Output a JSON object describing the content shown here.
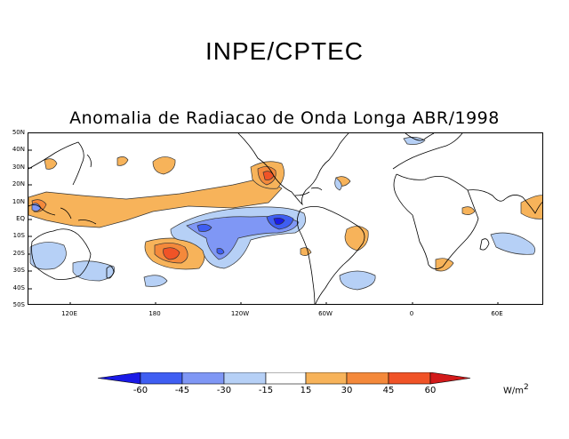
{
  "header": {
    "agency": "INPE/CPTEC",
    "title": "Anomalia de Radiacao de Onda Longa ABR/1998"
  },
  "map": {
    "lat_labels": [
      "50N",
      "40N",
      "30N",
      "20N",
      "10N",
      "EQ",
      "10S",
      "20S",
      "30S",
      "40S",
      "50S"
    ],
    "lon_labels": [
      "120E",
      "180",
      "120W",
      "60W",
      "0",
      "60E"
    ]
  },
  "legend": {
    "ticks": [
      "-60",
      "-45",
      "-30",
      "-15",
      "15",
      "30",
      "45",
      "60"
    ],
    "colors": [
      "#1a1ae6",
      "#3f5ef2",
      "#7f97f5",
      "#b6d0f6",
      "#ffffff",
      "#f7b35a",
      "#f4893b",
      "#f05327",
      "#d21a1a"
    ],
    "units": "W/m",
    "units_exp": "2"
  }
}
